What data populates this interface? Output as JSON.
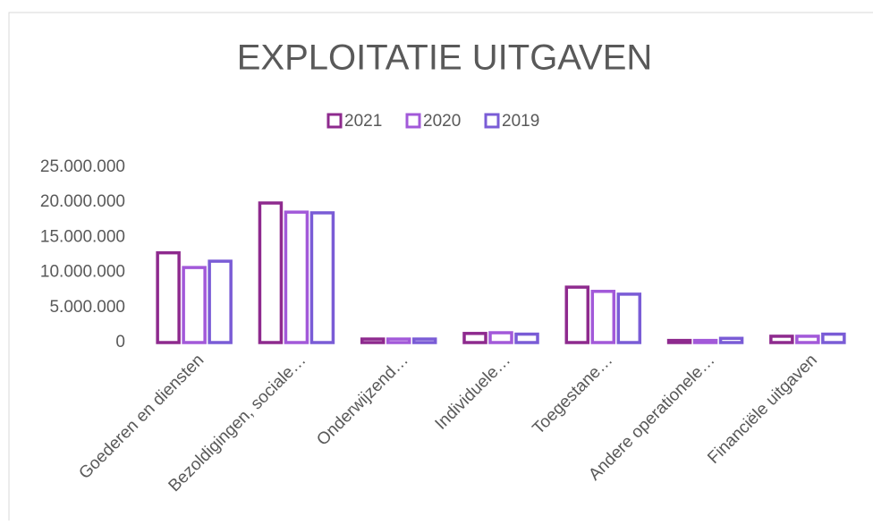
{
  "chart_data": {
    "type": "bar",
    "title": "EXPLOITATIE UITGAVEN",
    "categories": [
      "Goederen en diensten",
      "Bezoldigingen, sociale…",
      "Onderwijzend…",
      "Individuele…",
      "Toegestane…",
      "Andere operationele…",
      "Financiële uitgaven"
    ],
    "series": [
      {
        "name": "2021",
        "color": "#8e2a8e",
        "values": [
          12800000,
          19900000,
          500000,
          1300000,
          7900000,
          300000,
          900000
        ]
      },
      {
        "name": "2020",
        "color": "#a259d9",
        "values": [
          10700000,
          18600000,
          500000,
          1400000,
          7300000,
          300000,
          900000
        ]
      },
      {
        "name": "2019",
        "color": "#7a5cd6",
        "values": [
          11600000,
          18500000,
          500000,
          1200000,
          6900000,
          600000,
          1200000
        ]
      }
    ],
    "ylim": [
      0,
      25000000
    ],
    "yticks": [
      0,
      {
        "value": 5000000,
        "label": "5.000.000"
      },
      {
        "value": 10000000,
        "label": "10.000.000"
      },
      {
        "value": 15000000,
        "label": "15.000.000"
      },
      {
        "value": 20000000,
        "label": "20.000.000"
      },
      {
        "value": 25000000,
        "label": "25.000.000"
      }
    ],
    "legend": "top",
    "grid": false
  }
}
